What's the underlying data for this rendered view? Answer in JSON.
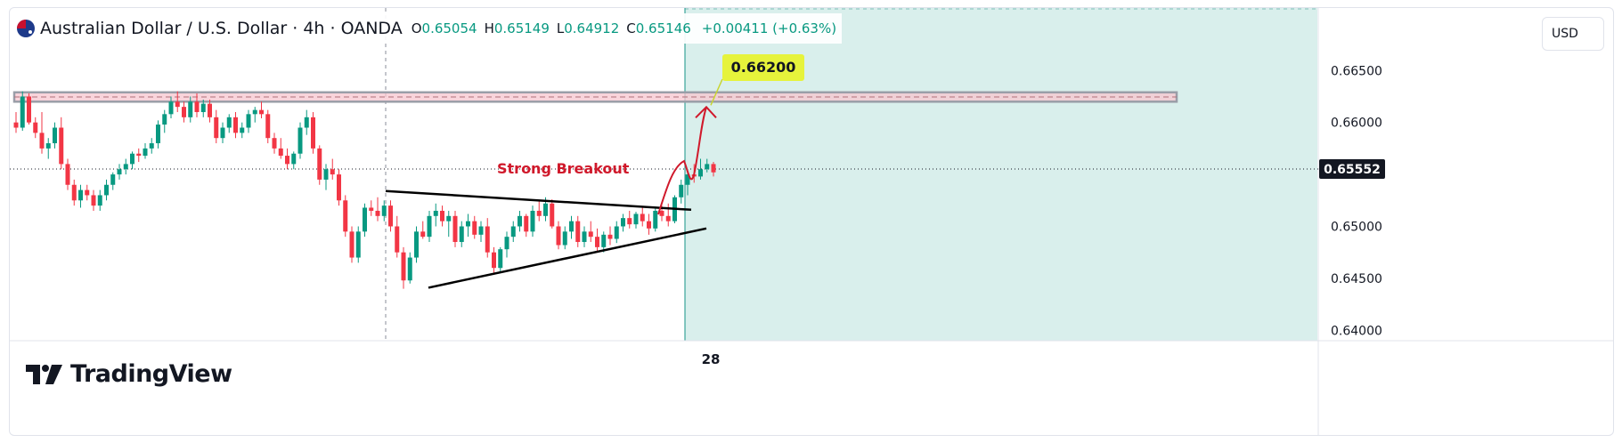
{
  "header": {
    "symbol": "Australian Dollar / U.S. Dollar · 4h · OANDA",
    "open_label": "O",
    "open": "0.65054",
    "high_label": "H",
    "high": "0.65149",
    "low_label": "L",
    "low": "0.64912",
    "close_label": "C",
    "close": "0.65146",
    "change": "+0.00411 (+0.63%)"
  },
  "currency_label": "USD",
  "logo_text": "TradingView",
  "annotations": {
    "target_label": "0.66200",
    "breakout_label": "Strong Breakout",
    "current_price_label": "0.65552"
  },
  "colors": {
    "up": "#089981",
    "down": "#f23645",
    "target_bg": "#e6f33b",
    "zone_fill": "#f7c6cf",
    "forecast_bg": "#d9efec",
    "arrow": "#d0192b"
  },
  "chart_data": {
    "type": "candlestick",
    "ylim": [
      0.639,
      0.6705
    ],
    "y_ticks": [
      "0.66500",
      "0.66000",
      "0.65500",
      "0.65000",
      "0.64500",
      "0.64000"
    ],
    "x_ticks": [
      "28"
    ],
    "resistance_zone": [
      0.662,
      0.6629
    ],
    "target": 0.662,
    "current_price": 0.65552,
    "trendline_upper": [
      [
        0,
        0.6534
      ],
      [
        1,
        0.6516
      ]
    ],
    "trendline_lower": [
      [
        0,
        0.6441
      ],
      [
        1,
        0.6498
      ]
    ],
    "candles": [
      [
        0.66,
        0.661,
        0.659,
        0.6595
      ],
      [
        0.6595,
        0.663,
        0.6592,
        0.6625
      ],
      [
        0.6625,
        0.6628,
        0.6598,
        0.66
      ],
      [
        0.66,
        0.6605,
        0.6585,
        0.659
      ],
      [
        0.659,
        0.661,
        0.657,
        0.6575
      ],
      [
        0.6575,
        0.6585,
        0.6565,
        0.658
      ],
      [
        0.658,
        0.66,
        0.6575,
        0.6595
      ],
      [
        0.6595,
        0.6605,
        0.6555,
        0.656
      ],
      [
        0.656,
        0.6565,
        0.6535,
        0.654
      ],
      [
        0.654,
        0.6545,
        0.652,
        0.6525
      ],
      [
        0.6525,
        0.654,
        0.6518,
        0.6535
      ],
      [
        0.6535,
        0.654,
        0.6525,
        0.653
      ],
      [
        0.653,
        0.6535,
        0.6515,
        0.652
      ],
      [
        0.652,
        0.6535,
        0.6515,
        0.653
      ],
      [
        0.653,
        0.6545,
        0.6525,
        0.654
      ],
      [
        0.654,
        0.6552,
        0.6535,
        0.655
      ],
      [
        0.655,
        0.656,
        0.6545,
        0.6555
      ],
      [
        0.6555,
        0.6565,
        0.655,
        0.656
      ],
      [
        0.656,
        0.6572,
        0.6555,
        0.657
      ],
      [
        0.657,
        0.6575,
        0.6562,
        0.6568
      ],
      [
        0.6568,
        0.658,
        0.6565,
        0.6575
      ],
      [
        0.6575,
        0.6585,
        0.657,
        0.658
      ],
      [
        0.658,
        0.6602,
        0.6575,
        0.6598
      ],
      [
        0.6598,
        0.6612,
        0.659,
        0.6608
      ],
      [
        0.6608,
        0.6625,
        0.6604,
        0.662
      ],
      [
        0.662,
        0.663,
        0.661,
        0.6615
      ],
      [
        0.6615,
        0.662,
        0.66,
        0.6605
      ],
      [
        0.6605,
        0.6625,
        0.66,
        0.662
      ],
      [
        0.662,
        0.6628,
        0.6605,
        0.661
      ],
      [
        0.661,
        0.6622,
        0.6605,
        0.6618
      ],
      [
        0.6618,
        0.6622,
        0.66,
        0.6605
      ],
      [
        0.6605,
        0.6612,
        0.658,
        0.6585
      ],
      [
        0.6585,
        0.66,
        0.658,
        0.6595
      ],
      [
        0.6595,
        0.6608,
        0.659,
        0.6605
      ],
      [
        0.6605,
        0.661,
        0.6585,
        0.659
      ],
      [
        0.659,
        0.66,
        0.6585,
        0.6595
      ],
      [
        0.6595,
        0.6612,
        0.659,
        0.6608
      ],
      [
        0.6608,
        0.6615,
        0.66,
        0.6612
      ],
      [
        0.6612,
        0.662,
        0.6604,
        0.6608
      ],
      [
        0.6608,
        0.6612,
        0.658,
        0.6585
      ],
      [
        0.6585,
        0.659,
        0.657,
        0.6575
      ],
      [
        0.6575,
        0.6585,
        0.6565,
        0.6568
      ],
      [
        0.6568,
        0.6575,
        0.6555,
        0.656
      ],
      [
        0.656,
        0.6572,
        0.6555,
        0.657
      ],
      [
        0.657,
        0.66,
        0.6565,
        0.6595
      ],
      [
        0.6595,
        0.6612,
        0.6588,
        0.6605
      ],
      [
        0.6605,
        0.661,
        0.657,
        0.6575
      ],
      [
        0.6575,
        0.6578,
        0.654,
        0.6545
      ],
      [
        0.6545,
        0.656,
        0.6535,
        0.6555
      ],
      [
        0.6555,
        0.6565,
        0.6545,
        0.655
      ],
      [
        0.655,
        0.6555,
        0.652,
        0.6525
      ],
      [
        0.6525,
        0.653,
        0.649,
        0.6495
      ],
      [
        0.6495,
        0.65,
        0.6465,
        0.647
      ],
      [
        0.647,
        0.65,
        0.6465,
        0.6495
      ],
      [
        0.6495,
        0.6522,
        0.649,
        0.6518
      ],
      [
        0.6518,
        0.6525,
        0.651,
        0.6515
      ],
      [
        0.6515,
        0.6528,
        0.6505,
        0.651
      ],
      [
        0.651,
        0.6525,
        0.6505,
        0.652
      ],
      [
        0.652,
        0.6525,
        0.6495,
        0.65
      ],
      [
        0.65,
        0.651,
        0.647,
        0.6475
      ],
      [
        0.6475,
        0.648,
        0.644,
        0.6448
      ],
      [
        0.6448,
        0.6475,
        0.6445,
        0.647
      ],
      [
        0.647,
        0.65,
        0.6465,
        0.6495
      ],
      [
        0.6495,
        0.6505,
        0.6488,
        0.649
      ],
      [
        0.649,
        0.6515,
        0.6485,
        0.651
      ],
      [
        0.651,
        0.6522,
        0.65,
        0.6515
      ],
      [
        0.6515,
        0.652,
        0.65,
        0.6505
      ],
      [
        0.6505,
        0.6515,
        0.649,
        0.651
      ],
      [
        0.651,
        0.6515,
        0.648,
        0.6485
      ],
      [
        0.6485,
        0.6505,
        0.648,
        0.65
      ],
      [
        0.65,
        0.6512,
        0.649,
        0.6505
      ],
      [
        0.6505,
        0.651,
        0.6488,
        0.6492
      ],
      [
        0.6492,
        0.6505,
        0.6485,
        0.65
      ],
      [
        0.65,
        0.6508,
        0.647,
        0.6475
      ],
      [
        0.6475,
        0.648,
        0.6455,
        0.646
      ],
      [
        0.646,
        0.648,
        0.6455,
        0.6478
      ],
      [
        0.6478,
        0.6495,
        0.647,
        0.649
      ],
      [
        0.649,
        0.6505,
        0.6485,
        0.65
      ],
      [
        0.65,
        0.6515,
        0.6495,
        0.651
      ],
      [
        0.651,
        0.6512,
        0.649,
        0.6495
      ],
      [
        0.6495,
        0.652,
        0.649,
        0.6515
      ],
      [
        0.6515,
        0.6525,
        0.6505,
        0.651
      ],
      [
        0.651,
        0.6528,
        0.6505,
        0.6522
      ],
      [
        0.6522,
        0.6526,
        0.6498,
        0.65
      ],
      [
        0.65,
        0.6505,
        0.6478,
        0.6482
      ],
      [
        0.6482,
        0.65,
        0.6478,
        0.6495
      ],
      [
        0.6495,
        0.651,
        0.6488,
        0.6505
      ],
      [
        0.6505,
        0.651,
        0.648,
        0.6485
      ],
      [
        0.6485,
        0.65,
        0.648,
        0.6495
      ],
      [
        0.6495,
        0.6505,
        0.6485,
        0.649
      ],
      [
        0.649,
        0.6498,
        0.6475,
        0.648
      ],
      [
        0.648,
        0.6495,
        0.6475,
        0.6492
      ],
      [
        0.6492,
        0.65,
        0.6482,
        0.6488
      ],
      [
        0.6488,
        0.6505,
        0.6484,
        0.65
      ],
      [
        0.65,
        0.6512,
        0.6495,
        0.6508
      ],
      [
        0.6508,
        0.6515,
        0.6498,
        0.6502
      ],
      [
        0.6502,
        0.6514,
        0.6498,
        0.6512
      ],
      [
        0.6512,
        0.6518,
        0.65,
        0.6505
      ],
      [
        0.6505,
        0.6512,
        0.6492,
        0.6498
      ],
      [
        0.6498,
        0.6518,
        0.6495,
        0.6515
      ],
      [
        0.6515,
        0.652,
        0.6505,
        0.651
      ],
      [
        0.651,
        0.6522,
        0.65,
        0.6505
      ],
      [
        0.6505,
        0.653,
        0.6503,
        0.6528
      ],
      [
        0.6528,
        0.6545,
        0.6522,
        0.654
      ],
      [
        0.654,
        0.6555,
        0.653,
        0.655
      ],
      [
        0.655,
        0.656,
        0.6542,
        0.6548
      ],
      [
        0.6548,
        0.6565,
        0.6545,
        0.6555
      ],
      [
        0.6555,
        0.6565,
        0.6552,
        0.656
      ],
      [
        0.656,
        0.6562,
        0.6548,
        0.6552
      ]
    ]
  }
}
